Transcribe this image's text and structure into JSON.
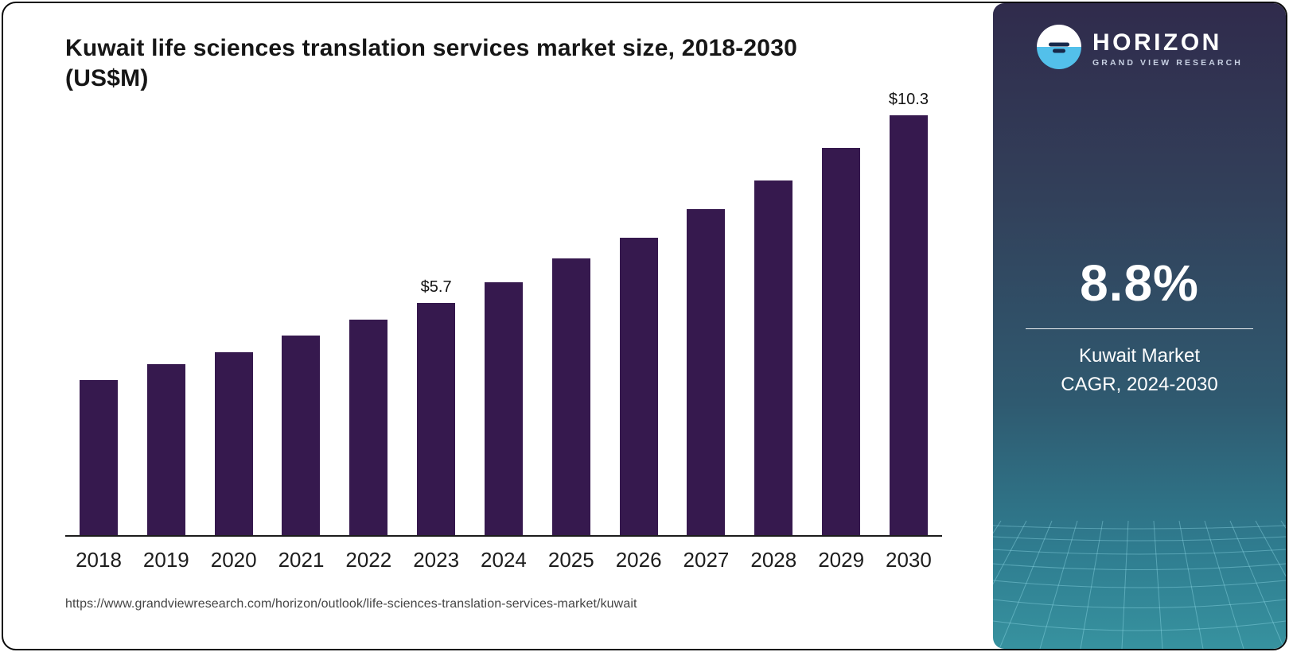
{
  "chart": {
    "title": "Kuwait life sciences translation services market size, 2018-2030 (US$M)",
    "source_url": "https://www.grandviewresearch.com/horizon/outlook/life-sciences-translation-services-market/kuwait"
  },
  "chart_data": {
    "type": "bar",
    "title": "Kuwait life sciences translation services market size, 2018-2030 (US$M)",
    "categories": [
      "2018",
      "2019",
      "2020",
      "2021",
      "2022",
      "2023",
      "2024",
      "2025",
      "2026",
      "2027",
      "2028",
      "2029",
      "2030"
    ],
    "values": [
      3.8,
      4.2,
      4.5,
      4.9,
      5.3,
      5.7,
      6.2,
      6.8,
      7.3,
      8.0,
      8.7,
      9.5,
      10.3
    ],
    "data_labels": [
      "",
      "",
      "",
      "",
      "",
      "$5.7",
      "",
      "",
      "",
      "",
      "",
      "",
      "$10.3"
    ],
    "xlabel": "",
    "ylabel": "US$M",
    "ylim": [
      0,
      10.3
    ],
    "grid": false,
    "legend": false,
    "bar_color": "#36194e"
  },
  "sidebar": {
    "brand": {
      "name": "HORIZON",
      "tagline": "GRAND VIEW RESEARCH"
    },
    "stat": {
      "value": "8.8%",
      "label_line1": "Kuwait Market",
      "label_line2": "CAGR, 2024-2030"
    }
  },
  "colors": {
    "bar": "#36194e",
    "axis": "#1c1c1c",
    "sidebar_top": "#302b4c",
    "sidebar_bottom": "#37929f",
    "logo_blue": "#53c0ea",
    "mesh_line": "#9ae6f2"
  }
}
